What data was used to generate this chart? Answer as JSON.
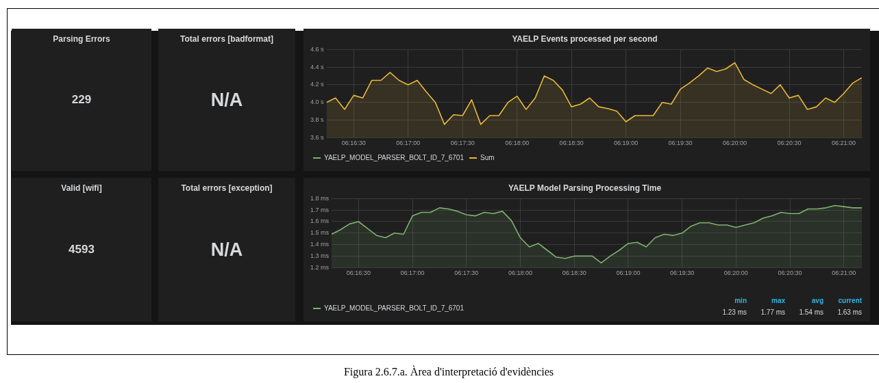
{
  "chart_data": [
    {
      "type": "other",
      "title": "Parsing Errors",
      "annotations": [
        "229"
      ]
    },
    {
      "type": "other",
      "title": "Total errors [badformat]",
      "annotations": [
        "N/A"
      ]
    },
    {
      "type": "area",
      "title": "YAELP Events processed per second",
      "x": [
        6.270833,
        6.272222,
        6.273611,
        6.275,
        6.276389,
        6.277778,
        6.279167,
        6.280556,
        6.281944,
        6.283333,
        6.284722,
        6.286111,
        6.2875,
        6.288889,
        6.290278,
        6.291667,
        6.293056,
        6.294444,
        6.295833,
        6.297222,
        6.298611,
        6.3,
        6.301389,
        6.302778,
        6.304167,
        6.305556,
        6.306944,
        6.308333,
        6.309722,
        6.311111,
        6.3125,
        6.313889,
        6.315278,
        6.316667,
        6.318056,
        6.319444,
        6.320833,
        6.322222,
        6.323611,
        6.325,
        6.326389,
        6.327778,
        6.329167,
        6.330556,
        6.331944,
        6.333333,
        6.334722,
        6.336111,
        6.3375,
        6.338889,
        6.340278,
        6.341667,
        6.343056,
        6.344444,
        6.345833,
        6.347222,
        6.348611,
        6.35,
        6.351389,
        6.352778
      ],
      "xlim": [
        6.270833,
        6.352778
      ],
      "xticks": [
        {
          "value": 6.275,
          "label": "06:16:30"
        },
        {
          "value": 6.283333,
          "label": "06:17:00"
        },
        {
          "value": 6.291667,
          "label": "06:17:30"
        },
        {
          "value": 6.3,
          "label": "06:18:00"
        },
        {
          "value": 6.308333,
          "label": "06:18:30"
        },
        {
          "value": 6.316667,
          "label": "06:19:00"
        },
        {
          "value": 6.325,
          "label": "06:19:30"
        },
        {
          "value": 6.333333,
          "label": "06:20:00"
        },
        {
          "value": 6.341667,
          "label": "06:20:30"
        },
        {
          "value": 6.35,
          "label": "06:21:00"
        }
      ],
      "ylim": [
        3.6,
        4.6
      ],
      "yticks": [
        {
          "value": 3.6,
          "label": "3.6 s"
        },
        {
          "value": 3.8,
          "label": "3.8 s"
        },
        {
          "value": 4.0,
          "label": "4.0 s"
        },
        {
          "value": 4.2,
          "label": "4.2 s"
        },
        {
          "value": 4.4,
          "label": "4.4 s"
        },
        {
          "value": 4.6,
          "label": "4.6 s"
        }
      ],
      "grid": true,
      "legend": "bottom left",
      "series": [
        {
          "name": "YAELP_MODEL_PARSER_BOLT_ID_7_6701",
          "color": "#7eb26d",
          "values": [
            null,
            null,
            null,
            null,
            null,
            null,
            null,
            null,
            null,
            null,
            null,
            null,
            null,
            null,
            null,
            null,
            null,
            null,
            null,
            null,
            null,
            null,
            null,
            null,
            null,
            null,
            null,
            null,
            null,
            null,
            null,
            null,
            null,
            null,
            null,
            null,
            null,
            null,
            null,
            null,
            null,
            null,
            null,
            null,
            null,
            null,
            null,
            null,
            null,
            null,
            null,
            null,
            null,
            null,
            null,
            null,
            null,
            null,
            null,
            null
          ]
        },
        {
          "name": "Sum",
          "color": "#eab839",
          "values": [
            4.0,
            4.05,
            3.92,
            4.08,
            4.05,
            4.25,
            4.25,
            4.34,
            4.25,
            4.2,
            4.25,
            4.12,
            4.0,
            3.75,
            3.86,
            3.85,
            4.03,
            3.75,
            3.85,
            3.85,
            4.0,
            4.07,
            3.92,
            4.05,
            4.3,
            4.25,
            4.14,
            3.95,
            3.98,
            4.05,
            3.95,
            3.93,
            3.9,
            3.78,
            3.85,
            3.85,
            3.85,
            4.0,
            3.98,
            4.15,
            4.22,
            4.3,
            4.39,
            4.35,
            4.38,
            4.45,
            4.26,
            4.2,
            4.15,
            4.1,
            4.2,
            4.05,
            4.08,
            3.92,
            3.95,
            4.05,
            4.0,
            4.1,
            4.22,
            4.28
          ]
        }
      ]
    },
    {
      "type": "other",
      "title": "Valid [wifi]",
      "annotations": [
        "4593"
      ]
    },
    {
      "type": "other",
      "title": "Total errors [exception]",
      "annotations": [
        "N/A"
      ]
    },
    {
      "type": "area",
      "title": "YAELP Model Parsing Processing Time",
      "x": [
        6.270833,
        6.272222,
        6.273611,
        6.275,
        6.276389,
        6.277778,
        6.279167,
        6.280556,
        6.281944,
        6.283333,
        6.284722,
        6.286111,
        6.2875,
        6.288889,
        6.290278,
        6.291667,
        6.293056,
        6.294444,
        6.295833,
        6.297222,
        6.298611,
        6.3,
        6.301389,
        6.302778,
        6.304167,
        6.305556,
        6.306944,
        6.308333,
        6.309722,
        6.311111,
        6.3125,
        6.313889,
        6.315278,
        6.316667,
        6.318056,
        6.319444,
        6.320833,
        6.322222,
        6.323611,
        6.325,
        6.326389,
        6.327778,
        6.329167,
        6.330556,
        6.331944,
        6.333333,
        6.334722,
        6.336111,
        6.3375,
        6.338889,
        6.340278,
        6.341667,
        6.343056,
        6.344444,
        6.345833,
        6.347222,
        6.348611,
        6.35,
        6.351389,
        6.352778
      ],
      "xlim": [
        6.270833,
        6.352778
      ],
      "xticks": [
        {
          "value": 6.275,
          "label": "06:16:30"
        },
        {
          "value": 6.283333,
          "label": "06:17:00"
        },
        {
          "value": 6.291667,
          "label": "06:17:30"
        },
        {
          "value": 6.3,
          "label": "06:18:00"
        },
        {
          "value": 6.308333,
          "label": "06:18:30"
        },
        {
          "value": 6.316667,
          "label": "06:19:00"
        },
        {
          "value": 6.325,
          "label": "06:19:30"
        },
        {
          "value": 6.333333,
          "label": "06:20:00"
        },
        {
          "value": 6.341667,
          "label": "06:20:30"
        },
        {
          "value": 6.35,
          "label": "06:21:00"
        }
      ],
      "ylim": [
        1.2,
        1.8
      ],
      "yticks": [
        {
          "value": 1.2,
          "label": "1.2 ms"
        },
        {
          "value": 1.3,
          "label": "1.3 ms"
        },
        {
          "value": 1.4,
          "label": "1.4 ms"
        },
        {
          "value": 1.5,
          "label": "1.5 ms"
        },
        {
          "value": 1.6,
          "label": "1.6 ms"
        },
        {
          "value": 1.7,
          "label": "1.7 ms"
        },
        {
          "value": 1.8,
          "label": "1.8 ms"
        }
      ],
      "grid": true,
      "legend": "bottom left",
      "annotations": [
        "min",
        "max",
        "avg",
        "current",
        "1.23 ms",
        "1.77 ms",
        "1.54 ms",
        "1.63 ms"
      ],
      "series": [
        {
          "name": "YAELP_MODEL_PARSER_BOLT_ID_7_6701",
          "color": "#7eb26d",
          "values": [
            1.49,
            1.53,
            1.58,
            1.6,
            1.54,
            1.48,
            1.46,
            1.5,
            1.49,
            1.65,
            1.68,
            1.68,
            1.72,
            1.71,
            1.69,
            1.66,
            1.65,
            1.68,
            1.67,
            1.69,
            1.61,
            1.46,
            1.38,
            1.41,
            1.35,
            1.29,
            1.28,
            1.3,
            1.3,
            1.3,
            1.24,
            1.3,
            1.35,
            1.41,
            1.42,
            1.38,
            1.46,
            1.49,
            1.48,
            1.5,
            1.56,
            1.59,
            1.59,
            1.57,
            1.57,
            1.55,
            1.57,
            1.59,
            1.63,
            1.65,
            1.68,
            1.67,
            1.67,
            1.71,
            1.71,
            1.72,
            1.74,
            1.73,
            1.72,
            1.72
          ]
        }
      ]
    },
    {
      "type": "other",
      "annotations": [
        "Figura 2.6.7.a. Àrea d'interpretació d'evidències"
      ]
    }
  ]
}
